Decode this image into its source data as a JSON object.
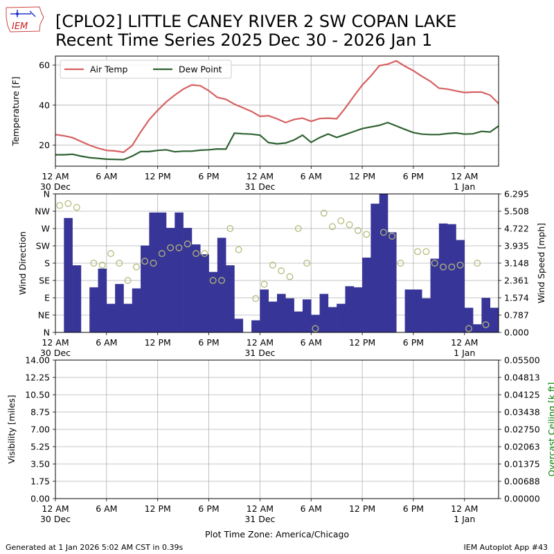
{
  "title_line1": "[CPLO2] LITTLE CANEY RIVER 2 SW COPAN LAKE",
  "title_line2": "Recent Time Series 2025 Dec 30 - 2026 Jan 1",
  "logo_text": "IEM",
  "footer_left": "Generated at 1 Jan 2026 5:02 AM CST in 0.39s",
  "footer_right": "IEM Autoplot App #43",
  "colors": {
    "air_temp": "#d65f5f",
    "dew_point": "#2e6130",
    "wind_bar": "#373597",
    "wind_dir_marker": "#b5b97a",
    "ceiling_axis": "#008000",
    "grid": "#b0b0b0"
  },
  "chart_data": [
    {
      "type": "line",
      "panel": "temperature",
      "ylabel": "Temperature [F]",
      "ylim": [
        9.5,
        64.5
      ],
      "yticks": [
        20,
        40,
        60
      ],
      "x_unit": "hours since 12 AM 30 Dec",
      "xlim": [
        0,
        52
      ],
      "xticks": [
        {
          "hour": 0,
          "label": "12 AM",
          "date": "30 Dec"
        },
        {
          "hour": 6,
          "label": "6 AM",
          "date": ""
        },
        {
          "hour": 12,
          "label": "12 PM",
          "date": ""
        },
        {
          "hour": 18,
          "label": "6 PM",
          "date": ""
        },
        {
          "hour": 24,
          "label": "12 AM",
          "date": "31 Dec"
        },
        {
          "hour": 30,
          "label": "6 AM",
          "date": ""
        },
        {
          "hour": 36,
          "label": "12 PM",
          "date": ""
        },
        {
          "hour": 42,
          "label": "6 PM",
          "date": ""
        },
        {
          "hour": 48,
          "label": "12 AM",
          "date": "1 Jan"
        }
      ],
      "legend": "upper-left",
      "series": [
        {
          "name": "Air Temp",
          "color": "#d65f5f",
          "x": [
            0,
            1,
            2,
            3,
            4,
            5,
            6,
            7,
            8,
            9,
            10,
            11,
            12,
            13,
            14,
            15,
            16,
            17,
            18,
            19,
            20,
            21,
            22,
            23,
            24,
            25,
            26,
            27,
            28,
            29,
            30,
            31,
            32,
            33,
            34,
            35,
            36,
            37,
            38,
            39,
            40,
            41,
            42,
            43,
            44,
            45,
            46,
            47,
            48,
            49,
            50,
            51,
            52
          ],
          "y": [
            25.3,
            24.7,
            23.8,
            21.9,
            20.0,
            18.5,
            17.4,
            17.1,
            16.5,
            19.8,
            26.6,
            32.7,
            37.4,
            41.6,
            45.0,
            48.0,
            50.1,
            49.7,
            47.2,
            43.9,
            42.9,
            40.5,
            38.7,
            36.9,
            34.4,
            34.7,
            33.2,
            31.3,
            32.8,
            33.5,
            31.9,
            33.3,
            33.5,
            33.2,
            38.5,
            44.4,
            50.0,
            54.5,
            59.7,
            60.5,
            62.1,
            59.5,
            57.2,
            54.4,
            51.9,
            48.5,
            48.0,
            47.1,
            46.3,
            46.5,
            46.5,
            45.0,
            40.8
          ]
        },
        {
          "name": "Dew Point",
          "color": "#2e6130",
          "x": [
            0,
            1,
            2,
            3,
            4,
            5,
            6,
            7,
            8,
            9,
            10,
            11,
            12,
            13,
            14,
            15,
            16,
            17,
            18,
            19,
            20,
            21,
            22,
            23,
            24,
            25,
            26,
            27,
            28,
            29,
            30,
            31,
            32,
            33,
            34,
            35,
            36,
            37,
            38,
            39,
            40,
            41,
            42,
            43,
            44,
            45,
            46,
            47,
            48,
            49,
            50,
            51,
            52
          ],
          "y": [
            15.2,
            15.2,
            15.5,
            14.5,
            13.8,
            13.4,
            13.0,
            12.9,
            12.8,
            14.5,
            16.8,
            16.8,
            17.4,
            17.7,
            16.7,
            17.0,
            17.0,
            17.5,
            17.7,
            18.1,
            18.0,
            26.0,
            25.7,
            25.5,
            25.0,
            21.3,
            20.7,
            21.1,
            22.6,
            25.0,
            21.4,
            23.8,
            25.6,
            23.9,
            25.3,
            26.8,
            28.3,
            29.1,
            29.9,
            31.3,
            29.6,
            27.9,
            26.3,
            25.5,
            25.3,
            25.3,
            25.8,
            26.1,
            25.5,
            25.7,
            26.9,
            26.6,
            29.6
          ]
        }
      ]
    },
    {
      "type": "bar",
      "panel": "wind",
      "ylabel": "Wind Direction",
      "y2label": "Wind Speed [mph]",
      "direction_ticks": [
        "N",
        "NE",
        "E",
        "SE",
        "S",
        "SW",
        "W",
        "NW",
        "N"
      ],
      "direction_ylim": [
        0,
        360
      ],
      "speed_ylim": [
        0,
        6.295
      ],
      "speed_ticks": [
        "0.000",
        "0.787",
        "1.574",
        "2.361",
        "3.148",
        "3.935",
        "4.722",
        "5.508",
        "6.295"
      ],
      "series": [
        {
          "name": "Wind Speed",
          "unit": "mph",
          "color": "#373597",
          "x": [
            0,
            1,
            2,
            3,
            4,
            5,
            6,
            7,
            8,
            9,
            10,
            11,
            12,
            13,
            14,
            15,
            16,
            17,
            18,
            19,
            20,
            21,
            22,
            23,
            24,
            25,
            26,
            27,
            28,
            29,
            30,
            31,
            32,
            33,
            34,
            35,
            36,
            37,
            38,
            39,
            40,
            41,
            42,
            43,
            44,
            45,
            46,
            47,
            48,
            49,
            50,
            51,
            52
          ],
          "values": [
            0.0,
            5.2,
            3.05,
            0.0,
            2.05,
            2.9,
            1.3,
            2.2,
            1.3,
            2.0,
            3.95,
            5.45,
            5.45,
            4.75,
            5.45,
            4.75,
            4.0,
            3.55,
            2.75,
            4.3,
            3.05,
            0.62,
            0.0,
            0.55,
            1.95,
            1.4,
            1.75,
            1.55,
            0.95,
            1.5,
            0.8,
            1.75,
            1.15,
            1.3,
            2.1,
            2.05,
            3.4,
            5.85,
            6.4,
            4.55,
            0.0,
            1.95,
            1.95,
            1.55,
            3.35,
            4.95,
            4.92,
            4.2,
            1.12,
            0.37,
            1.57,
            1.12,
            0.0
          ]
        },
        {
          "name": "Wind Direction",
          "unit": "degrees",
          "color": "#b5b97a",
          "x": [
            0,
            1,
            2,
            4,
            5,
            6,
            7,
            8,
            9,
            10,
            11,
            12,
            13,
            14,
            15,
            16,
            17,
            18,
            19,
            20,
            21,
            23,
            24,
            25,
            26,
            27,
            28,
            29,
            30,
            31,
            32,
            33,
            34,
            35,
            36,
            38,
            39,
            40,
            42,
            43,
            44,
            45,
            46,
            47,
            48,
            49,
            50,
            52
          ],
          "values": [
            330,
            335,
            325,
            180,
            175,
            205,
            180,
            135,
            170,
            185,
            180,
            205,
            220,
            220,
            230,
            205,
            205,
            135,
            135,
            270,
            215,
            88,
            125,
            175,
            160,
            145,
            270,
            180,
            10,
            310,
            275,
            290,
            280,
            265,
            255,
            260,
            250,
            180,
            210,
            210,
            180,
            170,
            170,
            175,
            10,
            180,
            20,
            340
          ]
        }
      ]
    },
    {
      "type": "line",
      "panel": "visibility",
      "ylabel": "Visibility [miles]",
      "y2label": "Overcast Ceiling [k ft]",
      "ylim": [
        0,
        14
      ],
      "yticks": [
        "0.00",
        "1.75",
        "3.50",
        "5.25",
        "7.00",
        "8.75",
        "10.50",
        "12.25",
        "14.00"
      ],
      "y2lim": [
        0,
        0.055
      ],
      "y2ticks": [
        "0.00000",
        "0.00688",
        "0.01375",
        "0.02063",
        "0.02750",
        "0.03438",
        "0.04125",
        "0.04813",
        "0.05500"
      ],
      "xlabel": "Plot Time Zone: America/Chicago",
      "series": []
    }
  ]
}
